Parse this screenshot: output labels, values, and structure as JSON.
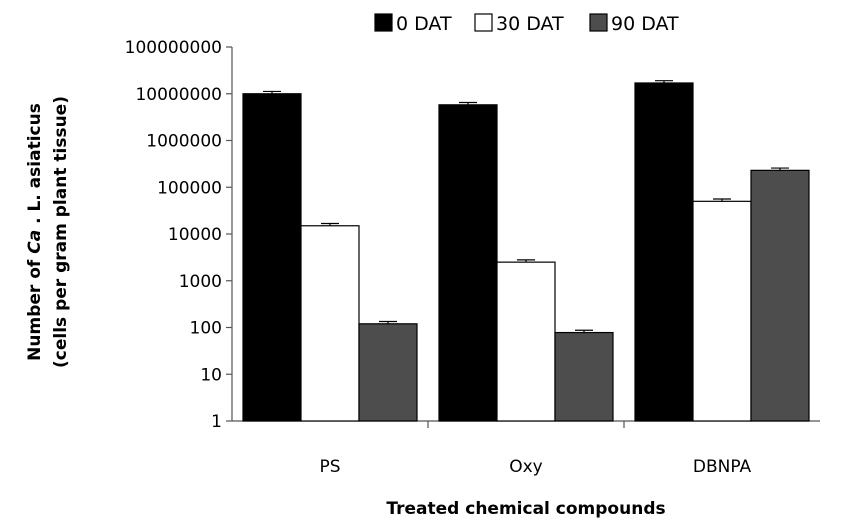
{
  "chart_data": {
    "type": "bar",
    "categories": [
      "PS",
      "Oxy",
      "DBNPA"
    ],
    "series": [
      {
        "name": "0 DAT",
        "values": [
          10000000,
          5800000,
          17000000
        ],
        "color": "#000000"
      },
      {
        "name": "30 DAT",
        "values": [
          15000,
          2500,
          50000
        ],
        "color": "#ffffff"
      },
      {
        "name": "90 DAT",
        "values": [
          120,
          78,
          230000
        ],
        "color": "#4d4d4d"
      }
    ],
    "yscale": "log",
    "ylim": [
      1,
      100000000
    ],
    "yticks": [
      "1",
      "10",
      "100",
      "1000",
      "10000",
      "100000",
      "1000000",
      "10000000",
      "100000000"
    ],
    "ylabel_line1_prefix": "Number of ",
    "ylabel_line1_italic": "Ca",
    "ylabel_line1_suffix": " . L. asiaticus",
    "ylabel_line2": "(cells per gram plant tissue)",
    "xlabel": "Treated chemical compounds",
    "legend_position": "top",
    "grid": false,
    "error_bars": true
  }
}
